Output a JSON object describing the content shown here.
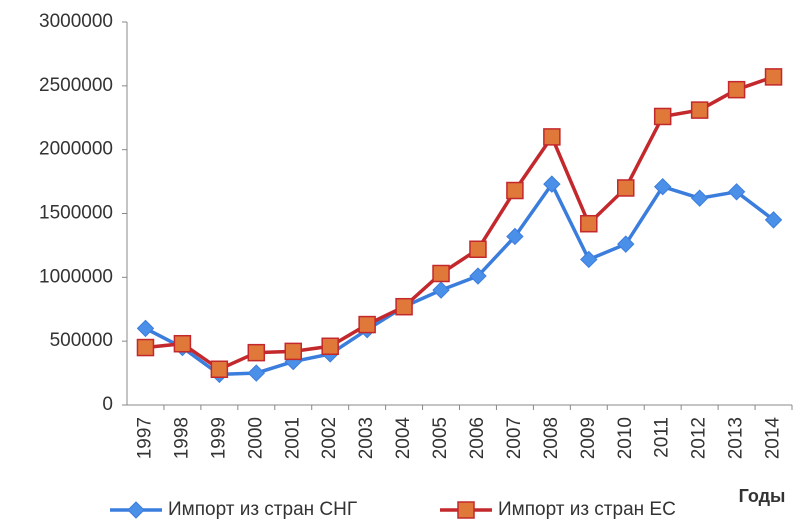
{
  "chart_data": {
    "type": "line",
    "x_label": "Годы",
    "categories": [
      "1997",
      "1998",
      "1999",
      "2000",
      "2001",
      "2002",
      "2003",
      "2004",
      "2005",
      "2006",
      "2007",
      "2008",
      "2009",
      "2010",
      "2011",
      "2012",
      "2013",
      "2014"
    ],
    "series": [
      {
        "name": "Импорт из стран СНГ",
        "color": "#3b7ddd",
        "marker": "diamond",
        "marker_color": "#4a8fe8",
        "values": [
          600000,
          450000,
          240000,
          250000,
          340000,
          400000,
          590000,
          770000,
          900000,
          1010000,
          1320000,
          1730000,
          1140000,
          1260000,
          1710000,
          1620000,
          1670000,
          1450000
        ]
      },
      {
        "name": "Импорт из стран ЕС",
        "color": "#c3282c",
        "marker": "square",
        "marker_color": "#e0783a",
        "values": [
          450000,
          480000,
          280000,
          410000,
          420000,
          460000,
          630000,
          770000,
          1030000,
          1220000,
          1680000,
          2100000,
          1420000,
          1700000,
          2260000,
          2310000,
          2470000,
          2570000
        ]
      }
    ],
    "ylim": [
      0,
      3000000
    ],
    "yticks": [
      0,
      500000,
      1000000,
      1500000,
      2000000,
      2500000,
      3000000
    ],
    "grid": false
  }
}
